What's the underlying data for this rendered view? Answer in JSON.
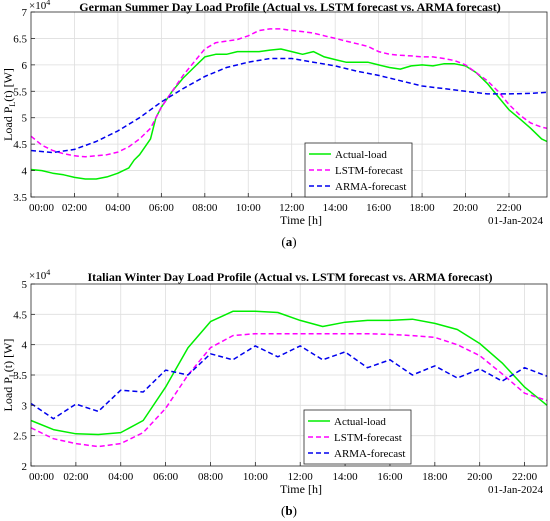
{
  "chart_data": [
    {
      "type": "line",
      "title": "German Summer Day Load Profile (Actual vs. LSTM forecast vs. ARMA forecast)",
      "xlabel": "Time [h]",
      "ylabel": "Load  P",
      "ylabel_sub": "L",
      "ylabel_unit": "(t)  [W]",
      "y_multiplier": "×10",
      "y_multiplier_exp": "4",
      "date_label": "01-Jan-2024",
      "caption_open": "(",
      "caption_letter": "a",
      "caption_close": ")",
      "xlim": [
        0,
        23.75
      ],
      "ylim": [
        3.5,
        7
      ],
      "x_tick_values": [
        0,
        2,
        4,
        6,
        8,
        10,
        12,
        14,
        16,
        18,
        20,
        22
      ],
      "x_ticks": [
        "00:00",
        "02:00",
        "04:00",
        "06:00",
        "08:00",
        "10:00",
        "12:00",
        "14:00",
        "16:00",
        "18:00",
        "20:00",
        "22:00"
      ],
      "y_tick_values": [
        3.5,
        4,
        4.5,
        5,
        5.5,
        6,
        6.5,
        7
      ],
      "y_ticks": [
        "3.5",
        "4",
        "4.5",
        "5",
        "5.5",
        "6",
        "6.5",
        "7"
      ],
      "grid": true,
      "legend_position": "bottom-center",
      "series": [
        {
          "name": "Actual-load",
          "color": "#00ee00",
          "dash": "solid",
          "points": [
            [
              0,
              4.02
            ],
            [
              0.5,
              4.0
            ],
            [
              1,
              3.95
            ],
            [
              1.5,
              3.92
            ],
            [
              2,
              3.87
            ],
            [
              2.5,
              3.84
            ],
            [
              3,
              3.84
            ],
            [
              3.5,
              3.88
            ],
            [
              4,
              3.95
            ],
            [
              4.5,
              4.05
            ],
            [
              4.75,
              4.2
            ],
            [
              5,
              4.3
            ],
            [
              5.5,
              4.6
            ],
            [
              5.75,
              5.0
            ],
            [
              6,
              5.2
            ],
            [
              6.5,
              5.5
            ],
            [
              7,
              5.75
            ],
            [
              7.5,
              5.95
            ],
            [
              8,
              6.15
            ],
            [
              8.5,
              6.2
            ],
            [
              9,
              6.2
            ],
            [
              9.5,
              6.25
            ],
            [
              10,
              6.25
            ],
            [
              10.5,
              6.25
            ],
            [
              11,
              6.28
            ],
            [
              11.5,
              6.3
            ],
            [
              12,
              6.25
            ],
            [
              12.5,
              6.2
            ],
            [
              13,
              6.25
            ],
            [
              13.5,
              6.15
            ],
            [
              14,
              6.1
            ],
            [
              14.5,
              6.05
            ],
            [
              15,
              6.05
            ],
            [
              15.5,
              6.05
            ],
            [
              16,
              6.0
            ],
            [
              16.5,
              5.95
            ],
            [
              17,
              5.92
            ],
            [
              17.5,
              5.98
            ],
            [
              18,
              6.0
            ],
            [
              18.5,
              5.98
            ],
            [
              19,
              6.02
            ],
            [
              19.5,
              6.02
            ],
            [
              20,
              5.98
            ],
            [
              20.5,
              5.85
            ],
            [
              21,
              5.65
            ],
            [
              21.5,
              5.4
            ],
            [
              22,
              5.15
            ],
            [
              22.5,
              4.98
            ],
            [
              23,
              4.8
            ],
            [
              23.5,
              4.6
            ],
            [
              23.75,
              4.55
            ]
          ]
        },
        {
          "name": "LSTM-forecast",
          "color": "#ff00ff",
          "dash": "dashed",
          "points": [
            [
              0,
              4.65
            ],
            [
              0.5,
              4.48
            ],
            [
              1,
              4.38
            ],
            [
              1.5,
              4.32
            ],
            [
              2,
              4.28
            ],
            [
              2.5,
              4.26
            ],
            [
              3,
              4.28
            ],
            [
              3.5,
              4.3
            ],
            [
              4,
              4.35
            ],
            [
              4.5,
              4.45
            ],
            [
              5,
              4.6
            ],
            [
              5.5,
              4.8
            ],
            [
              6,
              5.2
            ],
            [
              6.5,
              5.5
            ],
            [
              7,
              5.8
            ],
            [
              7.5,
              6.05
            ],
            [
              8,
              6.3
            ],
            [
              8.5,
              6.42
            ],
            [
              9,
              6.45
            ],
            [
              9.5,
              6.48
            ],
            [
              10,
              6.55
            ],
            [
              10.5,
              6.65
            ],
            [
              11,
              6.68
            ],
            [
              11.5,
              6.68
            ],
            [
              12,
              6.65
            ],
            [
              12.5,
              6.63
            ],
            [
              13,
              6.6
            ],
            [
              13.5,
              6.55
            ],
            [
              14,
              6.5
            ],
            [
              14.5,
              6.45
            ],
            [
              15,
              6.4
            ],
            [
              15.5,
              6.35
            ],
            [
              16,
              6.25
            ],
            [
              16.5,
              6.2
            ],
            [
              17,
              6.18
            ],
            [
              17.5,
              6.17
            ],
            [
              18,
              6.15
            ],
            [
              18.5,
              6.15
            ],
            [
              19,
              6.12
            ],
            [
              19.5,
              6.08
            ],
            [
              20,
              6.0
            ],
            [
              20.5,
              5.85
            ],
            [
              21,
              5.7
            ],
            [
              21.5,
              5.5
            ],
            [
              22,
              5.25
            ],
            [
              22.5,
              5.05
            ],
            [
              23,
              4.9
            ],
            [
              23.5,
              4.82
            ],
            [
              23.75,
              4.8
            ]
          ]
        },
        {
          "name": "ARMA-forecast",
          "color": "#0000ee",
          "dash": "dashed",
          "points": [
            [
              0,
              4.38
            ],
            [
              1,
              4.34
            ],
            [
              2,
              4.4
            ],
            [
              3,
              4.55
            ],
            [
              4,
              4.75
            ],
            [
              5,
              5.0
            ],
            [
              6,
              5.3
            ],
            [
              7,
              5.55
            ],
            [
              8,
              5.78
            ],
            [
              9,
              5.95
            ],
            [
              10,
              6.05
            ],
            [
              11,
              6.12
            ],
            [
              12,
              6.12
            ],
            [
              13,
              6.05
            ],
            [
              14,
              5.98
            ],
            [
              15,
              5.88
            ],
            [
              16,
              5.8
            ],
            [
              17,
              5.7
            ],
            [
              18,
              5.6
            ],
            [
              19,
              5.55
            ],
            [
              20,
              5.5
            ],
            [
              21,
              5.45
            ],
            [
              22,
              5.45
            ],
            [
              23,
              5.46
            ],
            [
              23.75,
              5.48
            ]
          ]
        }
      ]
    },
    {
      "type": "line",
      "title": "Italian Winter Day Load Profile (Actual vs. LSTM forecast vs. ARMA forecast)",
      "xlabel": "Time [h]",
      "ylabel": "Load  P",
      "ylabel_sub": "L",
      "ylabel_unit": "(t)  [W]",
      "y_multiplier": "×10",
      "y_multiplier_exp": "4",
      "date_label": "01-Jan-2024",
      "caption_open": "(",
      "caption_letter": "b",
      "caption_close": ")",
      "xlim": [
        0,
        23
      ],
      "ylim": [
        2,
        5
      ],
      "x_tick_values": [
        0,
        2,
        4,
        6,
        8,
        10,
        12,
        14,
        16,
        18,
        20,
        22
      ],
      "x_ticks": [
        "00:00",
        "02:00",
        "04:00",
        "06:00",
        "08:00",
        "10:00",
        "12:00",
        "14:00",
        "16:00",
        "18:00",
        "20:00",
        "22:00"
      ],
      "y_tick_values": [
        2,
        2.5,
        3,
        3.5,
        4,
        4.5,
        5
      ],
      "y_ticks": [
        "2",
        "2.5",
        "3",
        "3.5",
        "4",
        "4.5",
        "5"
      ],
      "grid": true,
      "legend_position": "bottom-center",
      "series": [
        {
          "name": "Actual-load",
          "color": "#00ee00",
          "dash": "solid",
          "points": [
            [
              0,
              2.75
            ],
            [
              1,
              2.6
            ],
            [
              2,
              2.53
            ],
            [
              3,
              2.52
            ],
            [
              4,
              2.55
            ],
            [
              5,
              2.75
            ],
            [
              6,
              3.3
            ],
            [
              7,
              3.95
            ],
            [
              8,
              4.38
            ],
            [
              9,
              4.55
            ],
            [
              10,
              4.55
            ],
            [
              11,
              4.53
            ],
            [
              12,
              4.4
            ],
            [
              13,
              4.3
            ],
            [
              14,
              4.37
            ],
            [
              15,
              4.4
            ],
            [
              16,
              4.4
            ],
            [
              17,
              4.42
            ],
            [
              18,
              4.35
            ],
            [
              19,
              4.25
            ],
            [
              20,
              4.02
            ],
            [
              21,
              3.7
            ],
            [
              22,
              3.3
            ],
            [
              23,
              3.0
            ]
          ]
        },
        {
          "name": "LSTM-forecast",
          "color": "#ff00ff",
          "dash": "dashed",
          "points": [
            [
              0,
              2.63
            ],
            [
              1,
              2.45
            ],
            [
              2,
              2.37
            ],
            [
              3,
              2.32
            ],
            [
              4,
              2.37
            ],
            [
              5,
              2.55
            ],
            [
              6,
              2.95
            ],
            [
              7,
              3.5
            ],
            [
              8,
              3.95
            ],
            [
              9,
              4.15
            ],
            [
              10,
              4.18
            ],
            [
              11,
              4.18
            ],
            [
              12,
              4.18
            ],
            [
              13,
              4.18
            ],
            [
              14,
              4.18
            ],
            [
              15,
              4.18
            ],
            [
              16,
              4.17
            ],
            [
              17,
              4.15
            ],
            [
              18,
              4.12
            ],
            [
              19,
              4.0
            ],
            [
              20,
              3.82
            ],
            [
              21,
              3.52
            ],
            [
              22,
              3.2
            ],
            [
              23,
              3.08
            ]
          ]
        },
        {
          "name": "ARMA-forecast",
          "color": "#0000ee",
          "dash": "dashed",
          "points": [
            [
              0,
              3.03
            ],
            [
              1,
              2.78
            ],
            [
              2,
              3.02
            ],
            [
              3,
              2.9
            ],
            [
              4,
              3.25
            ],
            [
              5,
              3.22
            ],
            [
              6,
              3.58
            ],
            [
              7,
              3.5
            ],
            [
              8,
              3.85
            ],
            [
              9,
              3.75
            ],
            [
              10,
              3.98
            ],
            [
              11,
              3.8
            ],
            [
              12,
              3.98
            ],
            [
              13,
              3.75
            ],
            [
              14,
              3.88
            ],
            [
              15,
              3.62
            ],
            [
              16,
              3.75
            ],
            [
              17,
              3.5
            ],
            [
              18,
              3.65
            ],
            [
              19,
              3.45
            ],
            [
              20,
              3.6
            ],
            [
              21,
              3.4
            ],
            [
              22,
              3.62
            ],
            [
              23,
              3.48
            ]
          ]
        }
      ]
    }
  ]
}
